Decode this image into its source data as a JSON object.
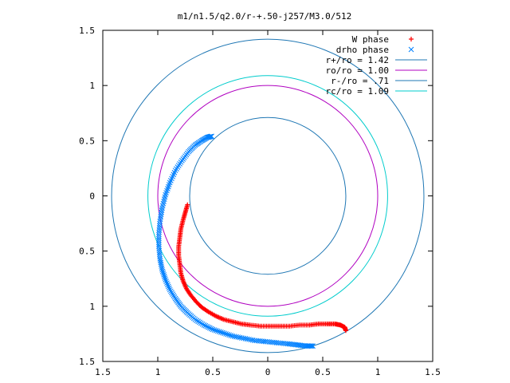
{
  "chart_data": {
    "type": "scatter",
    "title": "m1/n1.5/q2.0/r-+.50-j257/M3.0/512",
    "xlim": [
      -1.5,
      1.5
    ],
    "ylim": [
      -1.5,
      1.5
    ],
    "x_ticks": [
      -1.5,
      -1,
      -0.5,
      0,
      0.5,
      1,
      1.5
    ],
    "y_ticks": [
      -1.5,
      -1,
      -0.5,
      0,
      0.5,
      1,
      1.5
    ],
    "x_tick_labels": [
      "1.5",
      "1",
      "0.5",
      "0",
      "0.5",
      "1",
      "1.5"
    ],
    "y_tick_labels": [
      "1.5",
      "1",
      "0.5",
      "0",
      "0.5",
      "1",
      "1.5"
    ],
    "grid": false,
    "legend_position": "top-right",
    "circles": [
      {
        "name": "r+/ro = 1.42",
        "radius": 1.42,
        "color": "#1f77b4"
      },
      {
        "name": "ro/ro = 1.00",
        "radius": 1.0,
        "color": "#b000c0"
      },
      {
        "name": "r-/ro = .71",
        "radius": 0.71,
        "color": "#1f77b4"
      },
      {
        "name": "rc/ro = 1.09",
        "radius": 1.09,
        "color": "#00cccc"
      }
    ],
    "series": [
      {
        "name": "W phase",
        "marker": "+",
        "color": "#ff0000",
        "x": [
          -0.73,
          -0.75,
          -0.77,
          -0.79,
          -0.8,
          -0.81,
          -0.81,
          -0.8,
          -0.79,
          -0.77,
          -0.74,
          -0.7,
          -0.65,
          -0.6,
          -0.54,
          -0.47,
          -0.4,
          -0.32,
          -0.24,
          -0.16,
          -0.07,
          0.02,
          0.11,
          0.2,
          0.29,
          0.38,
          0.46,
          0.54,
          0.61,
          0.66,
          0.7,
          0.71
        ],
        "y": [
          -0.08,
          -0.15,
          -0.22,
          -0.3,
          -0.38,
          -0.46,
          -0.54,
          -0.62,
          -0.7,
          -0.77,
          -0.84,
          -0.9,
          -0.96,
          -1.01,
          -1.05,
          -1.09,
          -1.12,
          -1.14,
          -1.16,
          -1.17,
          -1.18,
          -1.18,
          -1.18,
          -1.18,
          -1.17,
          -1.17,
          -1.16,
          -1.16,
          -1.16,
          -1.17,
          -1.19,
          -1.22
        ]
      },
      {
        "name": "drho phase",
        "marker": "x",
        "color": "#0080ff",
        "x": [
          -0.51,
          -0.55,
          -0.6,
          -0.66,
          -0.72,
          -0.78,
          -0.84,
          -0.89,
          -0.93,
          -0.96,
          -0.98,
          -0.99,
          -0.99,
          -0.98,
          -0.96,
          -0.93,
          -0.89,
          -0.84,
          -0.79,
          -0.73,
          -0.66,
          -0.58,
          -0.5,
          -0.41,
          -0.32,
          -0.22,
          -0.12,
          -0.02,
          0.08,
          0.18,
          0.27,
          0.35,
          0.41
        ],
        "y": [
          0.54,
          0.53,
          0.5,
          0.46,
          0.4,
          0.32,
          0.23,
          0.12,
          0.01,
          -0.11,
          -0.23,
          -0.35,
          -0.46,
          -0.57,
          -0.67,
          -0.76,
          -0.85,
          -0.93,
          -1.0,
          -1.06,
          -1.12,
          -1.17,
          -1.21,
          -1.24,
          -1.27,
          -1.29,
          -1.31,
          -1.32,
          -1.33,
          -1.34,
          -1.35,
          -1.36,
          -1.36
        ]
      }
    ]
  }
}
